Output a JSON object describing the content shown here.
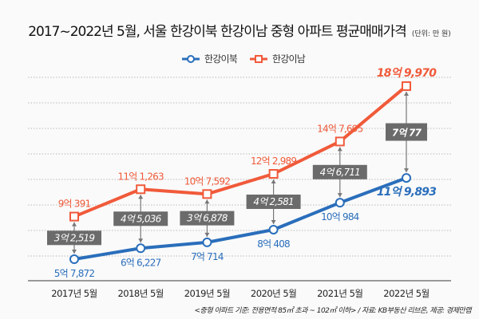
{
  "chart_data": {
    "type": "line",
    "title": "2017~2022년 5월, 서울 한강이북 한강이남 중형 아파트 평균매매가격",
    "unit": "(단위: 만 원)",
    "categories": [
      "2017년 5월",
      "2018년 5월",
      "2019년 5월",
      "2020년 5월",
      "2021년 5월",
      "2022년 5월"
    ],
    "ylim": [
      41440,
      200900
    ],
    "grid": true,
    "legend_position": "top-center",
    "series": [
      {
        "name": "한강이북",
        "color": "#2a6ebb",
        "marker": "circle",
        "values": [
          57872,
          66227,
          70714,
          80408,
          100984,
          119893
        ],
        "labels": [
          "5억 7,872",
          "6억 6,227",
          "7억 714",
          "8억 408",
          "10억 984",
          "11억 9,893"
        ]
      },
      {
        "name": "한강이남",
        "color": "#f05a3a",
        "marker": "square",
        "values": [
          90391,
          111263,
          107592,
          122989,
          147695,
          189970
        ],
        "labels": [
          "9억 391",
          "11억 1,263",
          "10억 7,592",
          "12억 2,989",
          "14억 7,695",
          "18억 9,970"
        ]
      }
    ],
    "gaps": [
      "3억 2,519",
      "4억 5,036",
      "3억 6,878",
      "4억 2,581",
      "4억 6,711",
      "7억 77"
    ],
    "gap_color": "#6b6b6b",
    "footnote": "<중형 아파트 기준: 전용면적 85㎡ 초과 ~ 102㎡ 이하> / 자료: KB부동산 리브온, 제공: 경제만랩"
  }
}
